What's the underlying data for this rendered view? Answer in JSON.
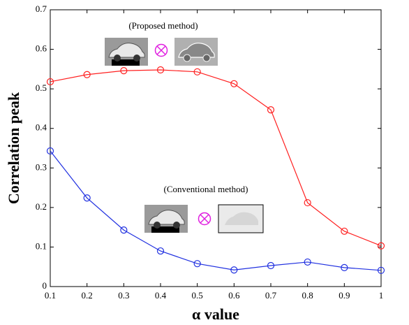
{
  "chart_data": {
    "type": "line",
    "x": [
      0.1,
      0.2,
      0.3,
      0.4,
      0.5,
      0.6,
      0.7,
      0.8,
      0.9,
      1
    ],
    "series": [
      {
        "color": "#ff2020",
        "values": [
          0.518,
          0.536,
          0.546,
          0.548,
          0.543,
          0.513,
          0.447,
          0.212,
          0.14,
          0.103
        ]
      },
      {
        "color": "#2030e0",
        "values": [
          0.343,
          0.224,
          0.143,
          0.09,
          0.058,
          0.042,
          0.053,
          0.062,
          0.048,
          0.041
        ]
      }
    ],
    "xlim": [
      0.1,
      1
    ],
    "xticks": [
      0.1,
      0.2,
      0.3,
      0.4,
      0.5,
      0.6,
      0.7,
      0.8,
      0.9,
      1
    ],
    "ylim": [
      0,
      0.7
    ],
    "yticks": [
      0,
      0.1,
      0.2,
      0.3,
      0.4,
      0.5,
      0.6,
      0.7
    ],
    "xlabel": "α value",
    "ylabel": "Correlation peak",
    "annotations": [
      "(Proposed method)",
      "(Conventional method)"
    ]
  }
}
